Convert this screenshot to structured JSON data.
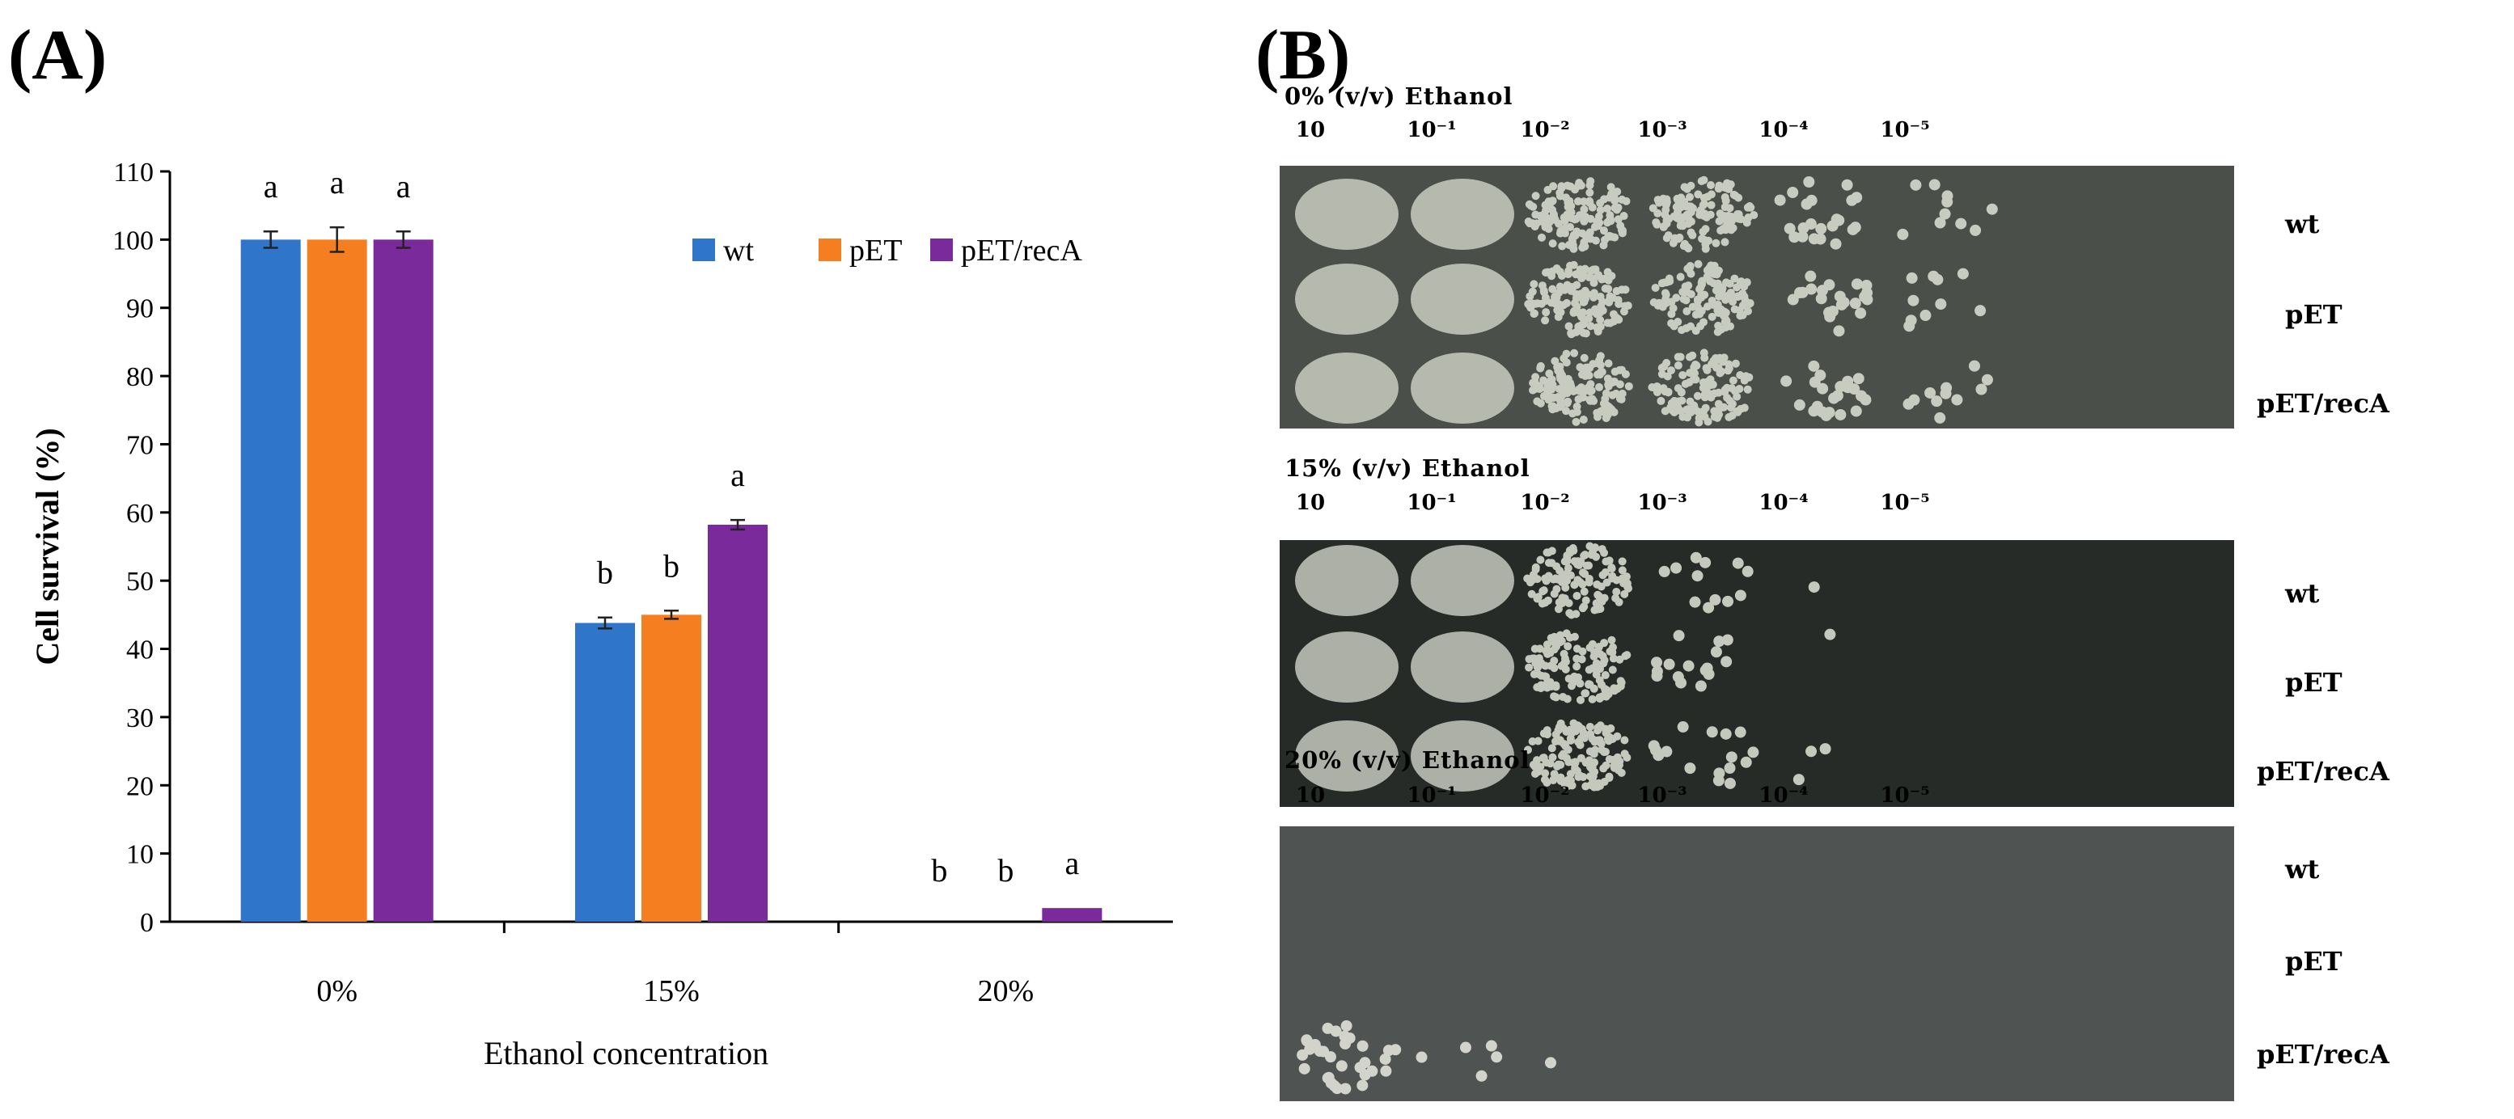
{
  "panel_labels": {
    "a": "(A)",
    "b": "(B)"
  },
  "chart_data": {
    "type": "bar",
    "categories": [
      "0%",
      "15%",
      "20%"
    ],
    "xlabel": "Ethanol concentration",
    "ylabel": "Cell survival (%)",
    "ylim": [
      0,
      110
    ],
    "yticks": [
      0,
      10,
      20,
      30,
      40,
      50,
      60,
      70,
      80,
      90,
      100,
      110
    ],
    "grid": false,
    "legend_position": "top-right",
    "series": [
      {
        "name": "wt",
        "color": "#2f75c9",
        "values": [
          100,
          43.8,
          0
        ],
        "errors": [
          1.2,
          0.8,
          0
        ],
        "letters": [
          "a",
          "b",
          "b"
        ]
      },
      {
        "name": "pET",
        "color": "#f47e20",
        "values": [
          100,
          45,
          0
        ],
        "errors": [
          1.8,
          0.6,
          0
        ],
        "letters": [
          "a",
          "b",
          "b"
        ]
      },
      {
        "name": "pET/recA",
        "color": "#7a2a9a",
        "values": [
          100,
          58.2,
          2
        ],
        "errors": [
          1.2,
          0.7,
          0
        ],
        "letters": [
          "a",
          "a",
          "a"
        ]
      }
    ]
  },
  "plates": {
    "dilutions": [
      "10",
      "10⁻¹",
      "10⁻²",
      "10⁻³",
      "10⁻⁴",
      "10⁻⁵"
    ],
    "strains": [
      "wt",
      "pET",
      "pET/recA"
    ],
    "sections": [
      {
        "title": "0% (v/v) Ethanol"
      },
      {
        "title": "15% (v/v) Ethanol"
      },
      {
        "title": "20% (v/v) Ethanol"
      }
    ]
  }
}
